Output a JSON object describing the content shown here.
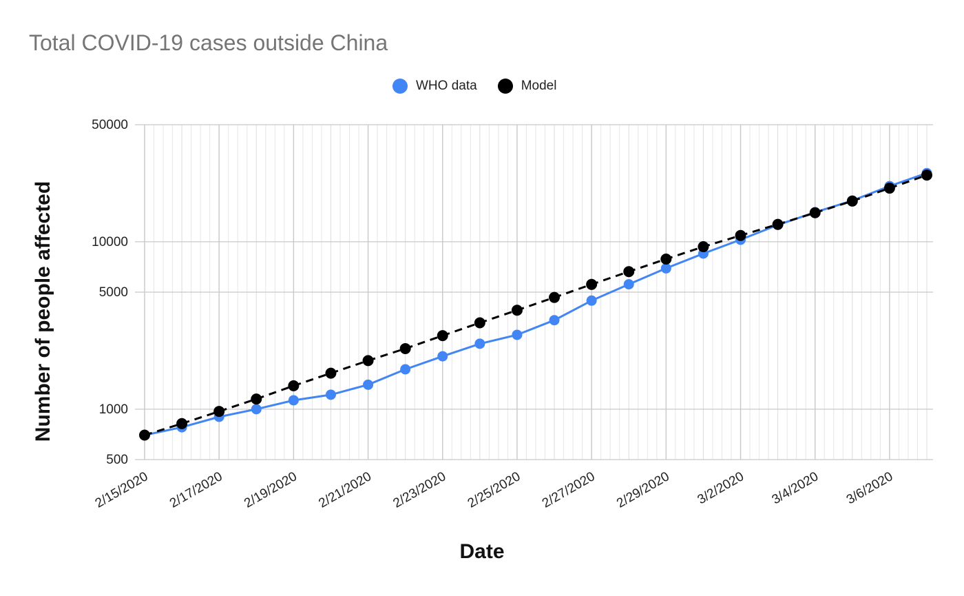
{
  "chart_data": {
    "type": "line",
    "title": "Total COVID-19 cases outside China",
    "xlabel": "Date",
    "ylabel": "Number of people affected",
    "yscale": "log",
    "ylim": [
      500,
      50000
    ],
    "y_ticks": [
      500,
      1000,
      5000,
      10000,
      50000
    ],
    "y_tick_labels": [
      "500",
      "1000",
      "5000",
      "10000",
      "50000"
    ],
    "x_tick_labels": [
      "2/15/2020",
      "2/17/2020",
      "2/19/2020",
      "2/21/2020",
      "2/23/2020",
      "2/25/2020",
      "2/27/2020",
      "2/29/2020",
      "3/2/2020",
      "3/4/2020",
      "3/6/2020"
    ],
    "x": [
      "2/15/2020",
      "2/16/2020",
      "2/17/2020",
      "2/18/2020",
      "2/19/2020",
      "2/20/2020",
      "2/21/2020",
      "2/22/2020",
      "2/23/2020",
      "2/24/2020",
      "2/25/2020",
      "2/26/2020",
      "2/27/2020",
      "2/28/2020",
      "2/29/2020",
      "3/1/2020",
      "3/2/2020",
      "3/3/2020",
      "3/4/2020",
      "3/5/2020",
      "3/6/2020",
      "3/7/2020"
    ],
    "grid": true,
    "legend_position": "top",
    "series": [
      {
        "name": "WHO data",
        "color": "#4285f4",
        "line_style": "solid",
        "values": [
          700,
          780,
          900,
          1000,
          1130,
          1220,
          1400,
          1730,
          2070,
          2460,
          2780,
          3400,
          4450,
          5570,
          6940,
          8500,
          10280,
          12600,
          15000,
          17600,
          21500,
          25700
        ]
      },
      {
        "name": "Model",
        "color": "#000000",
        "line_style": "dashed",
        "values": [
          700,
          820,
          970,
          1150,
          1380,
          1640,
          1950,
          2300,
          2750,
          3280,
          3900,
          4650,
          5560,
          6630,
          7880,
          9340,
          10900,
          12700,
          14900,
          17500,
          20900,
          25000
        ]
      }
    ]
  }
}
